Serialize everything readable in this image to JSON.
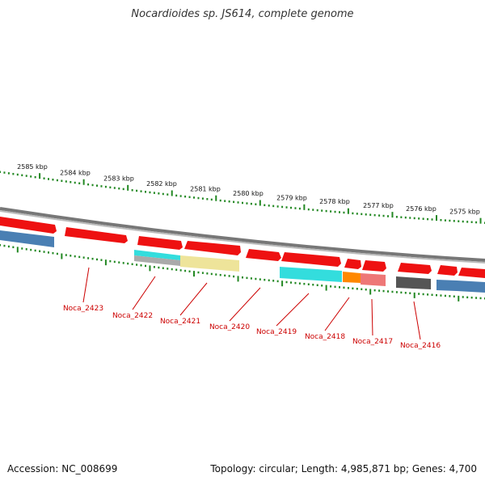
{
  "title": "Nocardioides sp. JS614, complete genome",
  "footer": {
    "accession": "Accession: NC_008699",
    "stats": "Topology: circular; Length: 4,985,871 bp; Genes: 4,700"
  },
  "kbp_labels": [
    "2585 kbp",
    "2584 kbp",
    "2583 kbp",
    "2582 kbp",
    "2581 kbp",
    "2580 kbp",
    "2579 kbp",
    "2578 kbp",
    "2577 kbp",
    "2576 kbp",
    "2575 kbp"
  ],
  "gene_labels": [
    "Noca_2423",
    "Noca_2422",
    "Noca_2421",
    "Noca_2420",
    "Noca_2419",
    "Noca_2418",
    "Noca_2417",
    "Noca_2416"
  ],
  "colors": {
    "red": "#ee1111",
    "blue": "#4a7fb3",
    "cyan": "#33dddd",
    "yellow": "#eee49a",
    "orange": "#ff8800",
    "pink": "#ee7777",
    "gray": "#aaaaaa",
    "dark": "#555555",
    "tick": "#228822",
    "label": "#cc0000"
  }
}
